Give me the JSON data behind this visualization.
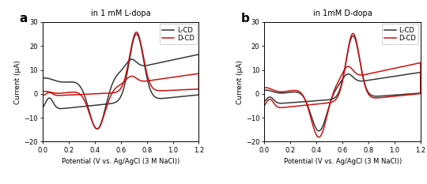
{
  "panel_a_title": "in 1 mM L-dopa",
  "panel_b_title": "in 1mM D-dopa",
  "xlabel": "Potential (V vs. Ag/AgCl (3 M NaCl))",
  "ylabel": "Current (μA)",
  "xlim": [
    0.0,
    1.2
  ],
  "ylim": [
    -20,
    30
  ],
  "yticks": [
    -20,
    -10,
    0,
    10,
    20,
    30
  ],
  "xticks": [
    0.0,
    0.2,
    0.4,
    0.6,
    0.8,
    1.0,
    1.2
  ],
  "color_black": "#383838",
  "color_red": "#cc1111",
  "legend_labels": [
    "L-CD",
    "D-CD"
  ],
  "label_a": "a",
  "label_b": "b",
  "lw": 1.1
}
